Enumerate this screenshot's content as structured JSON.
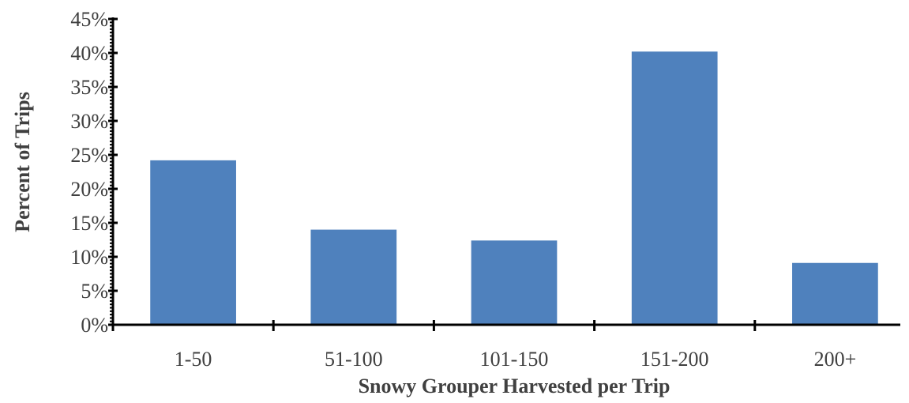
{
  "chart_data": {
    "type": "bar",
    "categories": [
      "1-50",
      "51-100",
      "101-150",
      "151-200",
      "200+"
    ],
    "values": [
      24.2,
      14.0,
      12.4,
      40.2,
      9.1
    ],
    "value_unit": "%",
    "ylim": [
      0,
      45
    ],
    "yticks": [
      0,
      5,
      10,
      15,
      20,
      25,
      30,
      35,
      40,
      45
    ],
    "ytick_labels": [
      "0%",
      "5%",
      "10%",
      "15%",
      "20%",
      "25%",
      "30%",
      "35%",
      "40%",
      "45%"
    ],
    "title": "",
    "xlabel": "Snowy Grouper Harvested per Trip",
    "ylabel": "Percent of Trips",
    "grid": false,
    "legend": "none",
    "bar_color": "#4F81BD",
    "axis_color": "#000000",
    "text_color": "#404040"
  }
}
